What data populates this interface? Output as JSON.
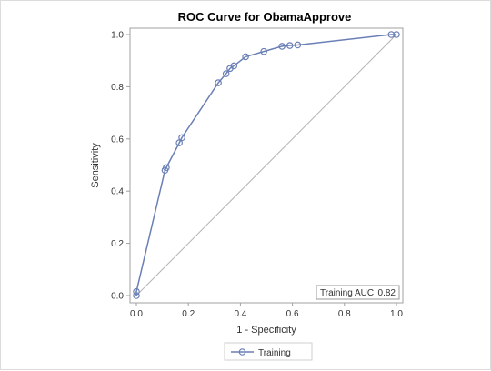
{
  "chart_data": {
    "type": "line",
    "title": "ROC Curve for ObamaApprove",
    "xlabel": "1 - Specificity",
    "ylabel": "Sensitivity",
    "xlim": [
      0,
      1
    ],
    "ylim": [
      0,
      1
    ],
    "xticks": [
      "0.0",
      "0.2",
      "0.4",
      "0.6",
      "0.8",
      "1.0"
    ],
    "yticks": [
      "0.0",
      "0.2",
      "0.4",
      "0.6",
      "0.8",
      "1.0"
    ],
    "grid": false,
    "legend_position": "bottom",
    "series": [
      {
        "name": "Training",
        "color": "#6a7fb5",
        "marker": "circle",
        "x": [
          0.0,
          0.0,
          0.11,
          0.115,
          0.165,
          0.175,
          0.315,
          0.345,
          0.36,
          0.375,
          0.42,
          0.49,
          0.56,
          0.59,
          0.62,
          0.98,
          1.0
        ],
        "y": [
          0.0,
          0.015,
          0.48,
          0.49,
          0.585,
          0.605,
          0.815,
          0.85,
          0.87,
          0.88,
          0.915,
          0.935,
          0.955,
          0.958,
          0.96,
          1.0,
          1.0
        ]
      }
    ],
    "reference_line": {
      "x": [
        0,
        1
      ],
      "y": [
        0,
        1
      ],
      "color": "#b4b4b4"
    },
    "inset": {
      "label": "Training AUC",
      "value": "0.82"
    }
  }
}
